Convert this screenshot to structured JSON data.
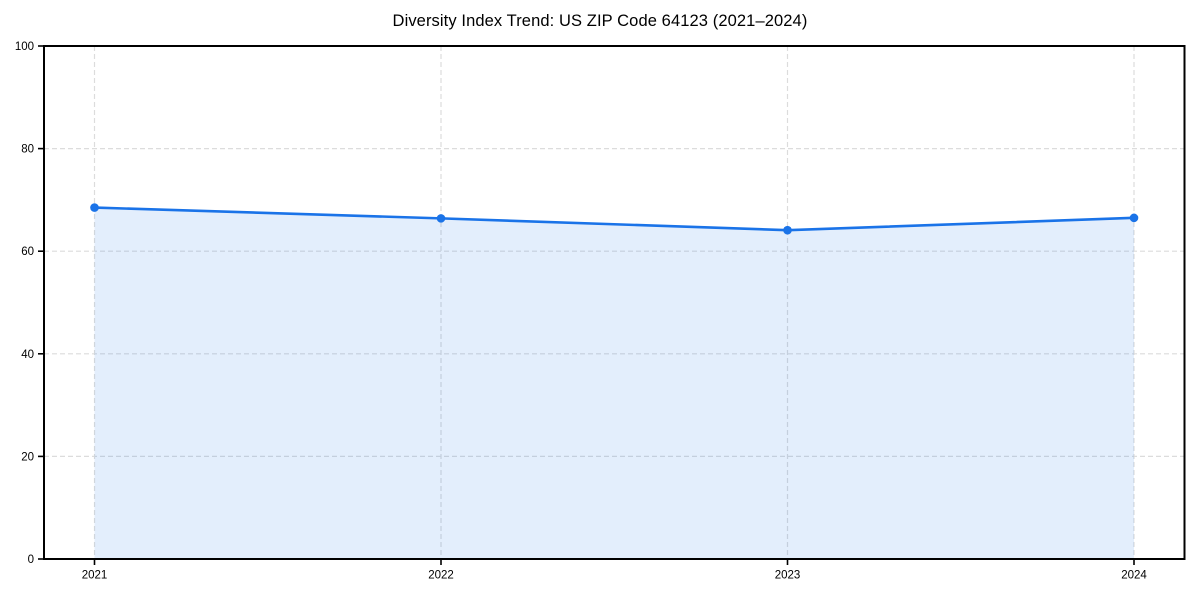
{
  "chart_data": {
    "type": "line",
    "title": "Diversity Index Trend: US ZIP Code 64123 (2021–2024)",
    "x": [
      2021,
      2022,
      2023,
      2024
    ],
    "xticks": [
      "2021",
      "2022",
      "2023",
      "2024"
    ],
    "values": [
      68.5,
      66.4,
      64.1,
      66.5
    ],
    "xlabel": "",
    "ylabel": "",
    "ylim": [
      0,
      100
    ],
    "yticks": [
      0,
      20,
      40,
      60,
      80,
      100
    ],
    "grid": "dashed",
    "legend": "none",
    "area_fill": true,
    "colors": {
      "line": "#1a73e8",
      "marker": "#1a73e8",
      "fill": "rgba(26,115,232,0.12)",
      "grid": "#dcdcdc",
      "axis": "#000000",
      "tick_label": "#000000",
      "title": "#000000",
      "background": "#ffffff"
    }
  }
}
